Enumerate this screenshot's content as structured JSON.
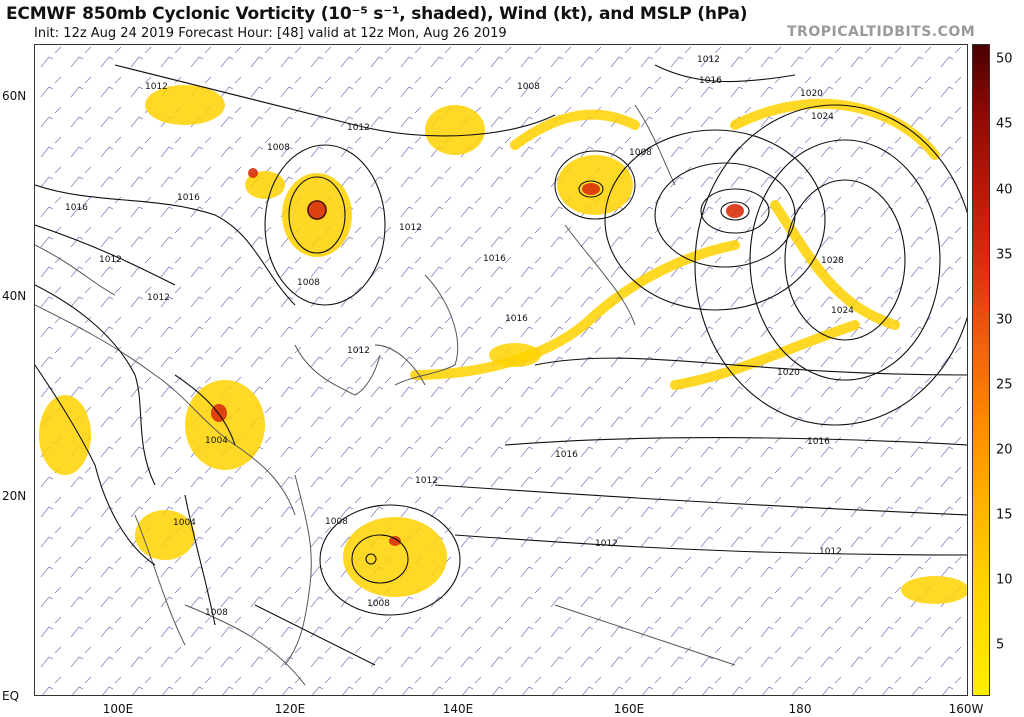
{
  "header": {
    "title": "ECMWF 850mb Cyclonic Vorticity (10⁻⁵ s⁻¹, shaded), Wind (kt), and MSLP (hPa)",
    "subtitle": "Init: 12z Aug 24 2019   Forecast Hour: [48]   valid at 12z Mon, Aug 26 2019",
    "watermark": "TROPICALTIDBITS.COM"
  },
  "map": {
    "lat_labels": [
      "60N",
      "40N",
      "20N",
      "EQ"
    ],
    "lon_labels": [
      "100E",
      "120E",
      "140E",
      "160E",
      "180",
      "160W"
    ],
    "colorbar": {
      "ticks": [
        "50",
        "45",
        "40",
        "35",
        "30",
        "25",
        "20",
        "15",
        "10",
        "5"
      ]
    },
    "isobar_labels": [
      "1012",
      "1008",
      "1016",
      "1012",
      "1008",
      "1016",
      "1020",
      "1024",
      "1028",
      "1024",
      "1020",
      "1016",
      "1016",
      "1012",
      "1012",
      "1012",
      "1008",
      "1008",
      "1004",
      "1004",
      "1008",
      "1012",
      "1016",
      "1016",
      "1012",
      "1012",
      "1008",
      "1012",
      "1016",
      "1008",
      "1012"
    ],
    "colors": {
      "vort_low": "#ffee00",
      "vort_mid": "#f5a000",
      "vort_high": "#c8200a",
      "isobar": "#111111",
      "wind_barb": "#7a6fb0",
      "coast": "#555555"
    }
  }
}
